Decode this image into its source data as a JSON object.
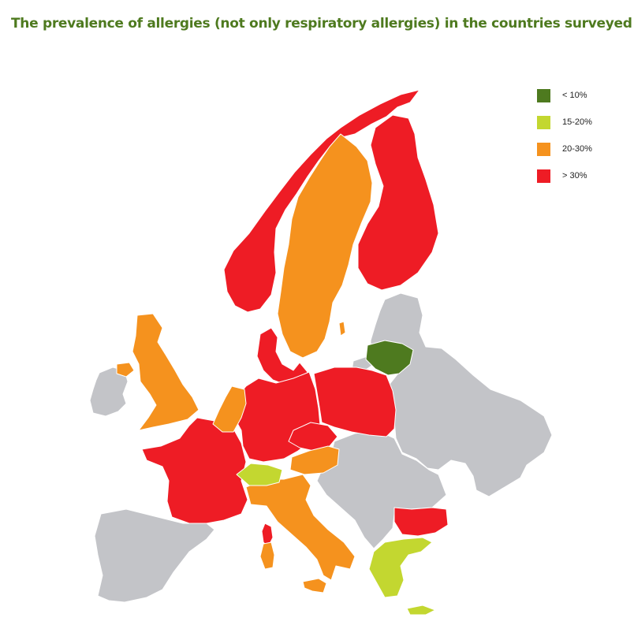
{
  "title": "The prevalence of allergies (not only respiratory allergies) in the countries surveyed",
  "colors": {
    "lt10": "#4e7a1f",
    "p15_20": "#c3d730",
    "p20_30": "#f5921e",
    "gt30": "#ee1c25",
    "no_data": "#c3c4c8"
  },
  "legend": [
    {
      "label": "< 10%",
      "color": "#4e7a1f"
    },
    {
      "label": "15-20%",
      "color": "#c3d730"
    },
    {
      "label": "20-30%",
      "color": "#f5921e"
    },
    {
      "label": "> 30%",
      "color": "#ee1c25"
    }
  ]
}
